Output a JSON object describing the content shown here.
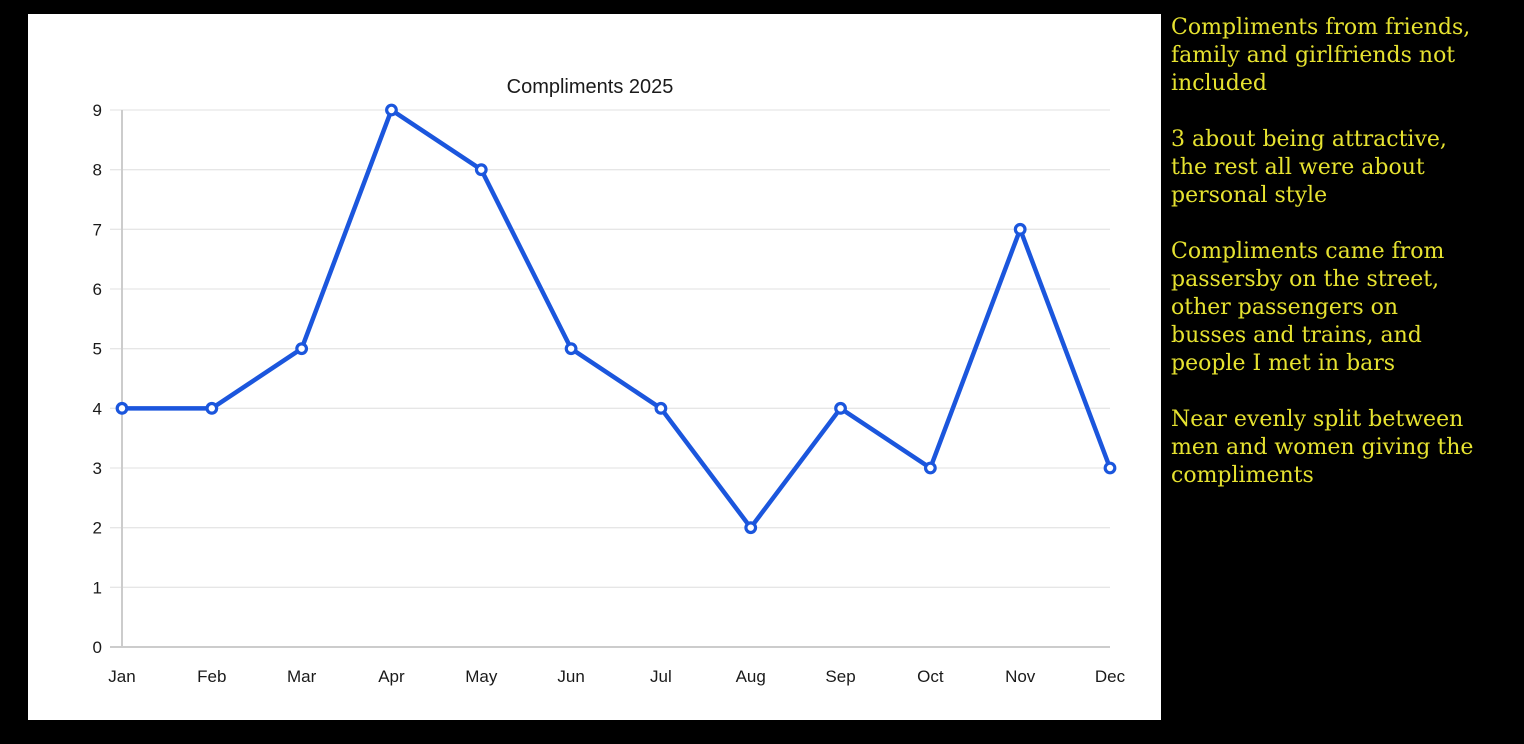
{
  "page": {
    "background": "#000000",
    "panel_background": "#ffffff"
  },
  "chart_data": {
    "type": "line",
    "title": "Compliments 2025",
    "categories": [
      "Jan",
      "Feb",
      "Mar",
      "Apr",
      "May",
      "Jun",
      "Jul",
      "Aug",
      "Sep",
      "Oct",
      "Nov",
      "Dec"
    ],
    "values": [
      4,
      4,
      5,
      9,
      8,
      5,
      4,
      2,
      4,
      3,
      7,
      3
    ],
    "ylim": [
      0,
      9
    ],
    "yticks": [
      0,
      1,
      2,
      3,
      4,
      5,
      6,
      7,
      8,
      9
    ],
    "grid": true,
    "legend": "none",
    "marker": "open-circle",
    "line_color": "#1b56dd",
    "marker_fill": "#ffffff",
    "grid_color": "#e6e6e6",
    "axis_color": "#cccccc",
    "text_color": "#1a1a1a"
  },
  "notes": {
    "text_color": "#e6e230",
    "items": [
      {
        "text": "Compliments from friends,\nfamily and girlfriends not\nincluded"
      },
      {
        "text": "3 about being attractive,\nthe rest all were about\npersonal style"
      },
      {
        "text": "Compliments came from\npassersby on the street,\nother passengers on\nbusses and trains, and\npeople I met in bars"
      },
      {
        "text": "Near evenly split between\nmen and women giving the\ncompliments"
      }
    ]
  }
}
